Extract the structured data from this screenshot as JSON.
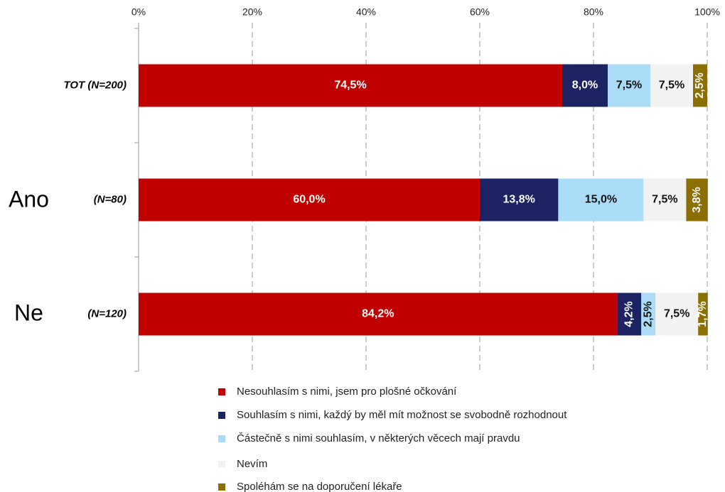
{
  "chart_data": {
    "type": "stacked_barh",
    "categories": [
      "TOT (N=200)",
      "(N=80)",
      "(N=120)"
    ],
    "group_labels": [
      "Ano",
      "Ne"
    ],
    "xlim": [
      0,
      100
    ],
    "xticks": [
      {
        "value": 0,
        "label": "0%"
      },
      {
        "value": 20,
        "label": "20%"
      },
      {
        "value": 40,
        "label": "40%"
      },
      {
        "value": 60,
        "label": "60%"
      },
      {
        "value": 80,
        "label": "80%"
      },
      {
        "value": 100,
        "label": "100%"
      }
    ],
    "grid": true,
    "series": [
      {
        "name": "Nesouhlasím s nimi, jsem pro plošné očkování",
        "color": "#c00000",
        "label_color": "#ffffff",
        "values": [
          74.5,
          60.0,
          84.2
        ],
        "value_labels": [
          "74,5%",
          "60,0%",
          "84,2%"
        ]
      },
      {
        "name": "Souhlasím s nimi, každý by měl mít možnost se svobodně rozhodnout",
        "color": "#1b2363",
        "label_color": "#ffffff",
        "values": [
          8.0,
          13.8,
          4.2
        ],
        "value_labels": [
          "8,0%",
          "13,8%",
          "4,2%"
        ]
      },
      {
        "name": "Částečně s nimi souhlasím, v některých věcech mají pravdu",
        "color": "#aadcf7",
        "label_color": "#111111",
        "values": [
          7.5,
          15.0,
          2.5
        ],
        "value_labels": [
          "7,5%",
          "15,0%",
          "2,5%"
        ]
      },
      {
        "name": "Nevím",
        "color": "#f2f2f2",
        "label_color": "#111111",
        "values": [
          7.5,
          7.5,
          7.5
        ],
        "value_labels": [
          "7,5%",
          "7,5%",
          "7,5%"
        ]
      },
      {
        "name": "Spoléhám se na doporučení lékaře",
        "color": "#8c6f00",
        "label_color": "#ffffff",
        "values": [
          2.5,
          3.8,
          1.7
        ],
        "value_labels": [
          "2,5%",
          "3,8%",
          "1,7%"
        ]
      }
    ]
  }
}
